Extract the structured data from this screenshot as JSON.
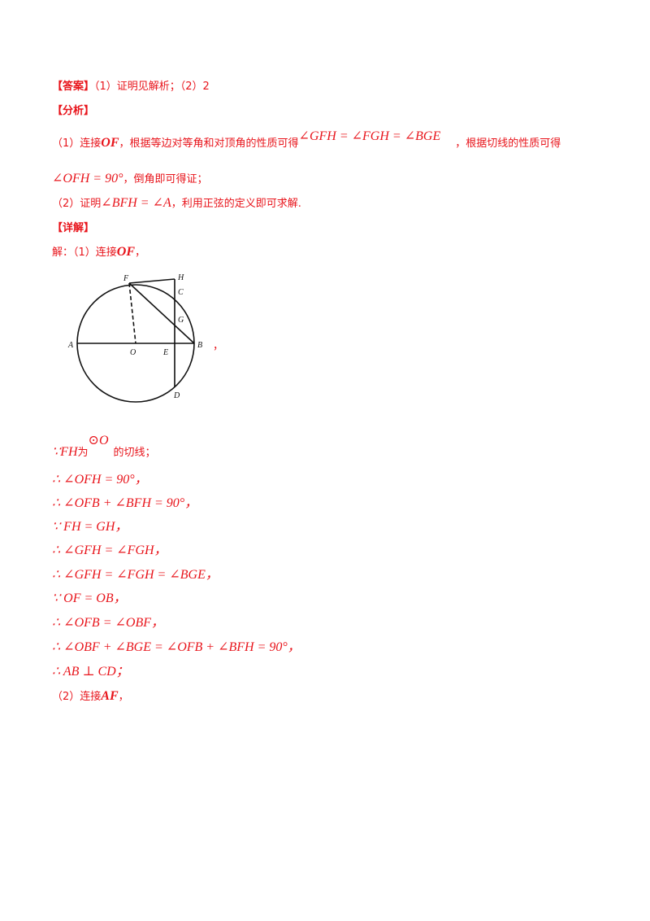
{
  "answer": {
    "label": "【答案】",
    "text": "（1）证明见解析；（2）2"
  },
  "analysis": {
    "label": "【分析】",
    "p1_a": "（1）连接",
    "p1_of": "OF",
    "p1_b": "，根据等边对等角和对顶角的性质可得",
    "p1_math": "∠GFH = ∠FGH = ∠BGE",
    "p1_c": "，根据切线的性质可得",
    "p2_math": "∠OFH = 90°",
    "p2_b": "，倒角即可得证；",
    "p3_a": "（2）证明",
    "p3_math": "∠BFH = ∠A",
    "p3_b": "，利用正弦的定义即可求解."
  },
  "detail": {
    "label": "【详解】",
    "intro_a": "解：（1）连接",
    "intro_of": "OF",
    "intro_b": "，",
    "figure_suffix": "，",
    "tangent_a": "∵",
    "tangent_fh": "FH",
    "tangent_b": "为",
    "tangent_circle": "⊙O",
    "tangent_c": "的切线；",
    "steps": [
      "∴ ∠OFH = 90°，",
      "∴ ∠OFB + ∠BFH = 90°，",
      "∵ FH = GH，",
      "∴ ∠GFH = ∠FGH，",
      "∴ ∠GFH = ∠FGH = ∠BGE，",
      "∵ OF = OB，",
      "∴ ∠OFB = ∠OBF，",
      "∴ ∠OBF + ∠BGE = ∠OFB + ∠BFH = 90°，",
      "∴ AB ⊥ CD；"
    ],
    "part2_a": "（2）连接",
    "part2_af": "AF",
    "part2_b": "，"
  },
  "figure_labels": {
    "F": "F",
    "H": "H",
    "C": "C",
    "G": "G",
    "A": "A",
    "O": "O",
    "E": "E",
    "B": "B",
    "D": "D"
  }
}
